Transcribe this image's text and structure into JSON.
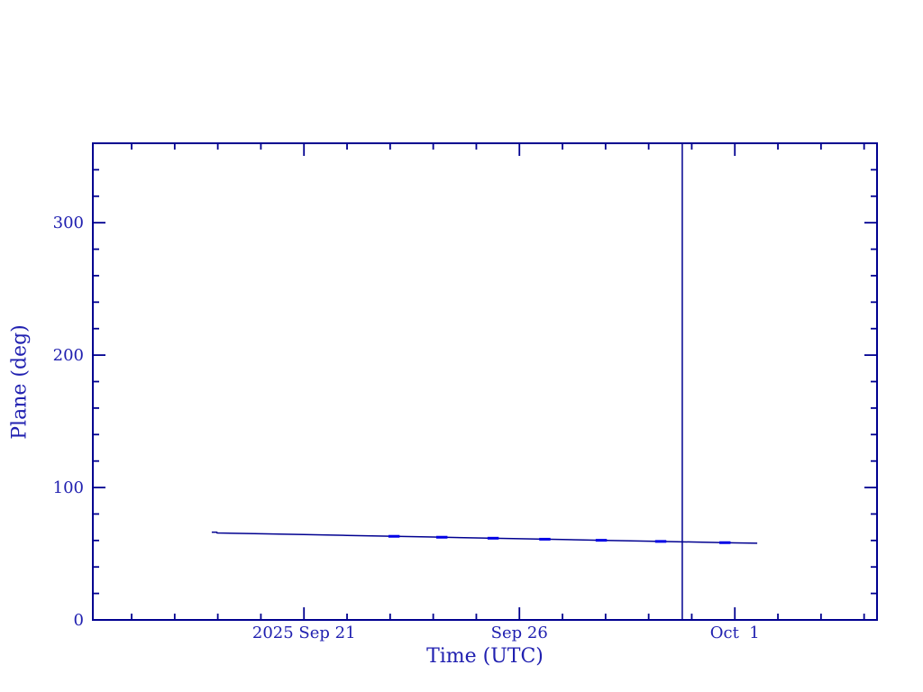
{
  "page": {
    "background": "#ffffff",
    "description": "Ephemeris-style plot of plane angle versus time"
  },
  "chart_data": {
    "type": "line",
    "title": "",
    "xlabel": "Time (UTC)",
    "ylabel": "Plane (deg)",
    "grid": false,
    "legend": null,
    "x_axis": {
      "unit": "days relative to 2025 Sep 21 00:00 UTC",
      "range": [
        -4.9,
        13.3
      ],
      "major_ticks": [
        {
          "day": 0,
          "label": "2025 Sep 21"
        },
        {
          "day": 5,
          "label": "Sep 26"
        },
        {
          "day": 10,
          "label": "Oct  1"
        }
      ],
      "minor_tick_step_days": 1,
      "minor_tick_range_days": [
        -4,
        13
      ]
    },
    "y_axis": {
      "range": [
        0,
        360
      ],
      "major_ticks": [
        {
          "value": 0,
          "label": "0"
        },
        {
          "value": 100,
          "label": "100"
        },
        {
          "value": 200,
          "label": "200"
        },
        {
          "value": 300,
          "label": "300"
        }
      ],
      "minor_tick_step": 20
    },
    "now_marker": {
      "day": 8.78,
      "style": "vertical-line",
      "color": "#000090"
    },
    "series": [
      {
        "name": "plane-angle",
        "type": "line",
        "color": "#000090",
        "points": [
          [
            -2.14,
            66.25
          ],
          [
            -2.02,
            66.25
          ],
          [
            -2.02,
            65.7
          ],
          [
            -1.0,
            65.07
          ],
          [
            0.0,
            64.44
          ],
          [
            1.0,
            63.82
          ],
          [
            2.0,
            63.2
          ],
          [
            3.0,
            62.58
          ],
          [
            4.0,
            61.96
          ],
          [
            5.0,
            61.33
          ],
          [
            6.0,
            60.71
          ],
          [
            7.0,
            60.09
          ],
          [
            8.0,
            59.47
          ],
          [
            9.0,
            58.85
          ],
          [
            10.0,
            58.22
          ],
          [
            10.52,
            57.9
          ]
        ]
      },
      {
        "name": "plane-angle-highlight-dashes",
        "type": "dash-markers",
        "color": "#0000e6",
        "dash_width_days": 0.26,
        "points": [
          [
            2.09,
            63.14
          ],
          [
            3.2,
            62.45
          ],
          [
            4.39,
            61.71
          ],
          [
            5.59,
            60.96
          ],
          [
            6.9,
            60.15
          ],
          [
            8.28,
            59.29
          ],
          [
            9.77,
            58.36
          ]
        ]
      }
    ],
    "colors": {
      "frame": "#000090",
      "tick": "#000090",
      "text": "#2020b0",
      "background": "#ffffff"
    }
  }
}
